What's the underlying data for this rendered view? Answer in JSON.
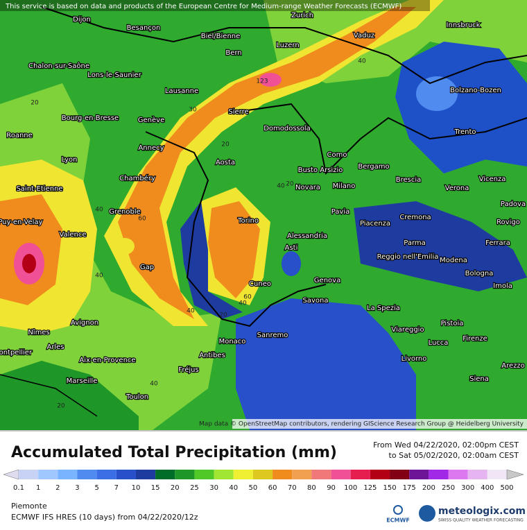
{
  "notice": "This service is based on data and products of the European Centre for Medium-range Weather Forecasts (ECMWF)",
  "map": {
    "cities": [
      "Dijon",
      "Besançon",
      "Zurich",
      "Biel/Bienne",
      "Bern",
      "Luzern",
      "Vaduz",
      "Innsbruck",
      "Chalon-sur-Saône",
      "Lons-le-Saunier",
      "Lausanne",
      "Bolzano-Bozen",
      "Bourg-en-Bresse",
      "Genève",
      "Sierre",
      "Domodossola",
      "Trento",
      "Roanne",
      "Annecy",
      "Aosta",
      "Como",
      "Lyon",
      "Busto Arsizio",
      "Bergamo",
      "Chambéry",
      "Vicenza",
      "Saint-Etienne",
      "Novara",
      "Milano",
      "Brescia",
      "Verona",
      "Le Puy-en-Velay",
      "Grenoble",
      "Padova",
      "Pavia",
      "Cremona",
      "Torino",
      "Piacenza",
      "Rovigo",
      "Valence",
      "Alessandria",
      "Asti",
      "Parma",
      "Ferrara",
      "Reggio nell'Emilia",
      "Modena",
      "Gap",
      "Bologna",
      "Genova",
      "Cuneo",
      "Imola",
      "Savona",
      "La Spezia",
      "Pistoia",
      "Avignon",
      "Viareggio",
      "Nîmes",
      "Arles",
      "Lucca",
      "Firenze",
      "Monaco",
      "Sanremo",
      "Montpellier",
      "Antibes",
      "Aix-en-Provence",
      "Livorno",
      "Arezzo",
      "Fréjus",
      "Siena",
      "Marseille",
      "Toulon"
    ],
    "contour_labels": [
      "123",
      "20",
      "40",
      "30",
      "20",
      "40",
      "60",
      "40",
      "40",
      "20",
      "60",
      "40",
      "20",
      "40",
      "20",
      "40"
    ],
    "attribution": "Map data © OpenStreetMap contributors, rendering GIScience Research Group @ Heidelberg University"
  },
  "title": "Accumulated Total Precipitation (mm)",
  "period_from": "From Wed 04/22/2020, 02:00pm CEST",
  "period_to": "to Sat 05/02/2020, 02:00am CEST",
  "legend": {
    "labels": [
      0.1,
      1,
      2,
      3,
      5,
      7,
      10,
      15,
      20,
      25,
      30,
      40,
      50,
      60,
      70,
      80,
      90,
      100,
      125,
      150,
      175,
      200,
      250,
      300,
      400,
      500
    ],
    "colors": [
      "#e0dcf0",
      "#c8d2f5",
      "#a0c8ff",
      "#78b4ff",
      "#508cf0",
      "#3c6ee6",
      "#2850c8",
      "#1e3ca0",
      "#006e28",
      "#1e9628",
      "#50c828",
      "#a0e632",
      "#f0f032",
      "#dcc81e",
      "#f08c1e",
      "#f0a050",
      "#f07878",
      "#f05096",
      "#e61e50",
      "#b40014",
      "#820014",
      "#6e1496",
      "#a028e6",
      "#dc78f0",
      "#e6b4f0",
      "#f0e6f5",
      "#c8c8c8"
    ]
  },
  "region": "Piemonte",
  "model": "ECMWF IFS HRES (10 days) from 04/22/2020/12z",
  "logo_ecmwf": "ECMWF",
  "logo_meteologix": "meteologix.com",
  "logo_tagline": "SWISS QUALITY WEATHER FORECASTING"
}
